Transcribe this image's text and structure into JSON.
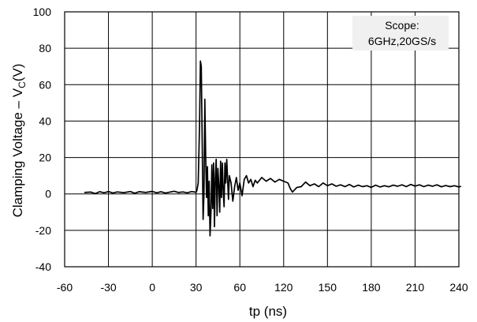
{
  "chart_data": {
    "type": "line",
    "title": "",
    "xlabel": "tp (ns)",
    "ylabel": {
      "main": "Clamping Voltage – V",
      "sub": "C",
      "unit": "(V)"
    },
    "x_tick_labels": [
      "-60",
      "-30",
      "0",
      "30",
      "60",
      "120",
      "150",
      "180",
      "210",
      "240"
    ],
    "y_ticks": [
      -40,
      -20,
      0,
      20,
      40,
      60,
      80,
      100
    ],
    "ylim": [
      -40,
      100
    ],
    "xlim_divisions": [
      0,
      10
    ],
    "grid": true,
    "legend": "none",
    "annotation": [
      "Scope:",
      "6GHz,20GS/s"
    ],
    "series": [
      {
        "color": "#000000",
        "x_unit": "grid divisions from -60 tick",
        "points": [
          [
            0.45,
            0.8
          ],
          [
            0.6,
            1.0
          ],
          [
            0.7,
            0.2
          ],
          [
            0.8,
            1.2
          ],
          [
            0.9,
            0.6
          ],
          [
            1.0,
            1.3
          ],
          [
            1.1,
            0.5
          ],
          [
            1.2,
            1.1
          ],
          [
            1.35,
            0.7
          ],
          [
            1.5,
            1.3
          ],
          [
            1.6,
            0.4
          ],
          [
            1.7,
            1.2
          ],
          [
            1.85,
            0.8
          ],
          [
            2.0,
            1.4
          ],
          [
            2.1,
            0.6
          ],
          [
            2.2,
            1.2
          ],
          [
            2.3,
            0.5
          ],
          [
            2.4,
            1.0
          ],
          [
            2.5,
            1.5
          ],
          [
            2.6,
            0.8
          ],
          [
            2.7,
            1.1
          ],
          [
            2.8,
            0.6
          ],
          [
            2.9,
            1.3
          ],
          [
            3.0,
            0.9
          ],
          [
            3.02,
            2.0
          ],
          [
            3.05,
            6.0
          ],
          [
            3.08,
            38.0
          ],
          [
            3.1,
            73.0
          ],
          [
            3.12,
            70.0
          ],
          [
            3.14,
            30.0
          ],
          [
            3.16,
            -14.0
          ],
          [
            3.18,
            0.0
          ],
          [
            3.2,
            52.0
          ],
          [
            3.22,
            20.0
          ],
          [
            3.24,
            -2.0
          ],
          [
            3.26,
            15.0
          ],
          [
            3.28,
            -12.0
          ],
          [
            3.3,
            7.0
          ],
          [
            3.32,
            -23.0
          ],
          [
            3.34,
            -10.0
          ],
          [
            3.36,
            16.0
          ],
          [
            3.38,
            -8.0
          ],
          [
            3.4,
            17.0
          ],
          [
            3.42,
            -18.0
          ],
          [
            3.44,
            9.0
          ],
          [
            3.46,
            19.0
          ],
          [
            3.48,
            -12.0
          ],
          [
            3.5,
            14.0
          ],
          [
            3.52,
            4.0
          ],
          [
            3.54,
            -10.0
          ],
          [
            3.56,
            18.0
          ],
          [
            3.58,
            -2.0
          ],
          [
            3.6,
            17.0
          ],
          [
            3.62,
            2.0
          ],
          [
            3.64,
            -7.0
          ],
          [
            3.66,
            17.0
          ],
          [
            3.68,
            6.0
          ],
          [
            3.7,
            19.0
          ],
          [
            3.72,
            8.0
          ],
          [
            3.74,
            -3.0
          ],
          [
            3.76,
            10.0
          ],
          [
            3.8,
            6.0
          ],
          [
            3.84,
            -4.0
          ],
          [
            3.88,
            4.0
          ],
          [
            3.92,
            9.0
          ],
          [
            3.96,
            2.0
          ],
          [
            4.0,
            6.0
          ],
          [
            4.05,
            -1.0
          ],
          [
            4.1,
            8.0
          ],
          [
            4.15,
            10.0
          ],
          [
            4.2,
            6.0
          ],
          [
            4.25,
            8.0
          ],
          [
            4.3,
            4.0
          ],
          [
            4.35,
            7.5
          ],
          [
            4.4,
            6.0
          ],
          [
            4.5,
            9.0
          ],
          [
            4.6,
            7.0
          ],
          [
            4.7,
            8.5
          ],
          [
            4.8,
            6.5
          ],
          [
            4.9,
            8.0
          ],
          [
            5.0,
            7.0
          ],
          [
            5.1,
            6.0
          ],
          [
            5.15,
            3.0
          ],
          [
            5.2,
            1.0
          ],
          [
            5.3,
            3.5
          ],
          [
            5.4,
            4.0
          ],
          [
            5.5,
            6.5
          ],
          [
            5.6,
            4.5
          ],
          [
            5.7,
            5.5
          ],
          [
            5.8,
            4.0
          ],
          [
            5.9,
            6.0
          ],
          [
            6.0,
            4.5
          ],
          [
            6.1,
            5.5
          ],
          [
            6.2,
            4.2
          ],
          [
            6.3,
            5.0
          ],
          [
            6.4,
            4.0
          ],
          [
            6.5,
            5.2
          ],
          [
            6.6,
            3.8
          ],
          [
            6.7,
            4.8
          ],
          [
            6.8,
            4.0
          ],
          [
            6.9,
            4.5
          ],
          [
            7.0,
            3.6
          ],
          [
            7.1,
            4.8
          ],
          [
            7.2,
            3.8
          ],
          [
            7.3,
            4.5
          ],
          [
            7.4,
            3.9
          ],
          [
            7.5,
            4.8
          ],
          [
            7.6,
            4.2
          ],
          [
            7.7,
            5.0
          ],
          [
            7.8,
            4.0
          ],
          [
            7.9,
            5.2
          ],
          [
            8.0,
            4.3
          ],
          [
            8.1,
            5.0
          ],
          [
            8.2,
            4.0
          ],
          [
            8.3,
            4.8
          ],
          [
            8.4,
            4.2
          ],
          [
            8.5,
            5.0
          ],
          [
            8.6,
            3.9
          ],
          [
            8.7,
            4.6
          ],
          [
            8.8,
            4.0
          ],
          [
            8.9,
            4.5
          ],
          [
            9.0,
            3.8
          ],
          [
            9.05,
            4.2
          ]
        ]
      }
    ]
  }
}
